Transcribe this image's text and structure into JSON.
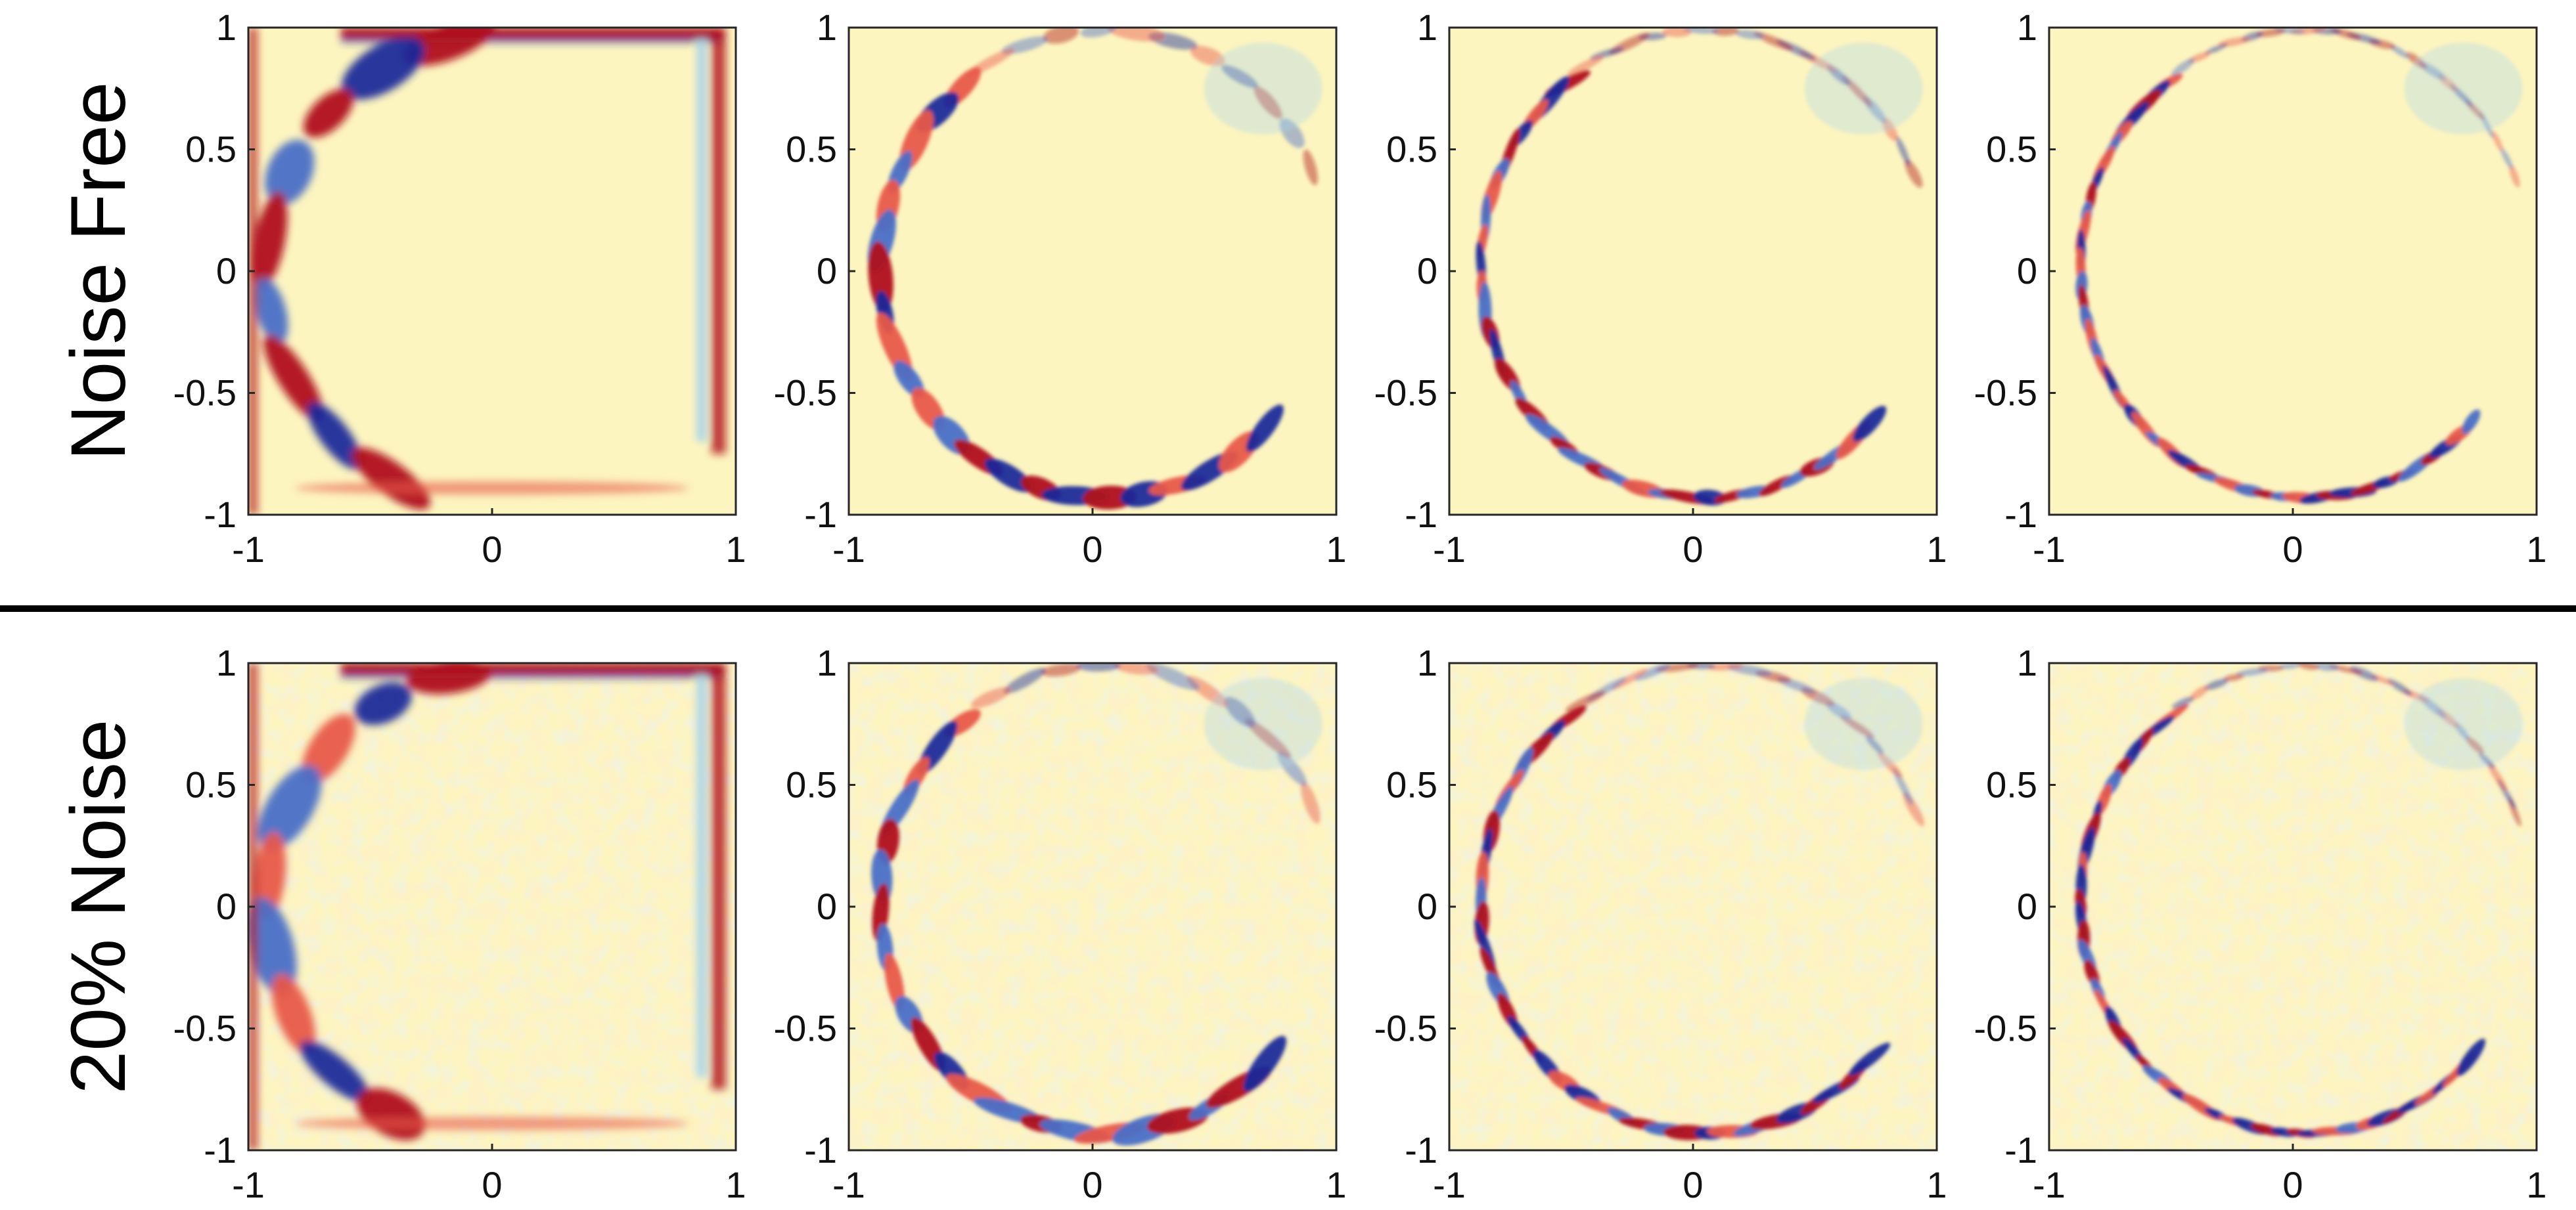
{
  "chart_data": {
    "type": "heatmap",
    "layout": "2 rows x 4 columns of panels",
    "row_labels": [
      "Noise Free",
      "20% Noise"
    ],
    "xlim": [
      -1,
      1
    ],
    "ylim": [
      -1,
      1
    ],
    "x_ticks": [
      "-1",
      "0",
      "1"
    ],
    "y_ticks": [
      "1",
      "0.5",
      "0",
      "-0.5",
      "-1"
    ],
    "colormap": {
      "low": "#1a2a9a",
      "mid": "#fdf5c0",
      "high": "#b0121c"
    },
    "background_color": "#fdf5c0",
    "grid": false,
    "legend": "none",
    "divider_between_rows": true,
    "panels": [
      {
        "row": "Noise Free",
        "column": 1,
        "x_ticks": [
          "-1",
          "0",
          "1"
        ],
        "y_ticks": [
          "1",
          "0.5",
          "0",
          "-0.5",
          "-1"
        ],
        "pattern": "broad bands along left and top edges, ring near boundary"
      },
      {
        "row": "Noise Free",
        "column": 2,
        "x_ticks": [
          "-1",
          "0",
          "1"
        ],
        "y_ticks": [
          "1",
          "0.5",
          "0",
          "-0.5",
          "-1"
        ],
        "pattern": "oscillating ring, strongest along bottom edge"
      },
      {
        "row": "Noise Free",
        "column": 3,
        "x_ticks": [
          "-1",
          "0",
          "1"
        ],
        "y_ticks": [
          "1",
          "0.5",
          "0",
          "-0.5",
          "-1"
        ],
        "pattern": "finer striations along left and bottom boundary"
      },
      {
        "row": "Noise Free",
        "column": 4,
        "x_ticks": [
          "-1",
          "0",
          "1"
        ],
        "y_ticks": [
          "1",
          "0.5",
          "0",
          "-0.5",
          "-1"
        ],
        "pattern": "fine striations concentrated at lower-left boundary"
      },
      {
        "row": "20% Noise",
        "column": 1,
        "x_ticks": [
          "-1",
          "0",
          "1"
        ],
        "y_ticks": [
          "1",
          "0.5",
          "0",
          "-0.5",
          "-1"
        ],
        "pattern": "broad bands along left and top edges with speckle noise"
      },
      {
        "row": "20% Noise",
        "column": 2,
        "x_ticks": [
          "-1",
          "0",
          "1"
        ],
        "y_ticks": [
          "1",
          "0.5",
          "0",
          "-0.5",
          "-1"
        ],
        "pattern": "oscillating ring with speckle noise"
      },
      {
        "row": "20% Noise",
        "column": 3,
        "x_ticks": [
          "-1",
          "0",
          "1"
        ],
        "y_ticks": [
          "1",
          "0.5",
          "0",
          "-0.5",
          "-1"
        ],
        "pattern": "finer striations with speckle noise"
      },
      {
        "row": "20% Noise",
        "column": 4,
        "x_ticks": [
          "-1",
          "0",
          "1"
        ],
        "y_ticks": [
          "1",
          "0.5",
          "0",
          "-0.5",
          "-1"
        ],
        "pattern": "fine striations at lower-left boundary with speckle noise"
      }
    ]
  }
}
